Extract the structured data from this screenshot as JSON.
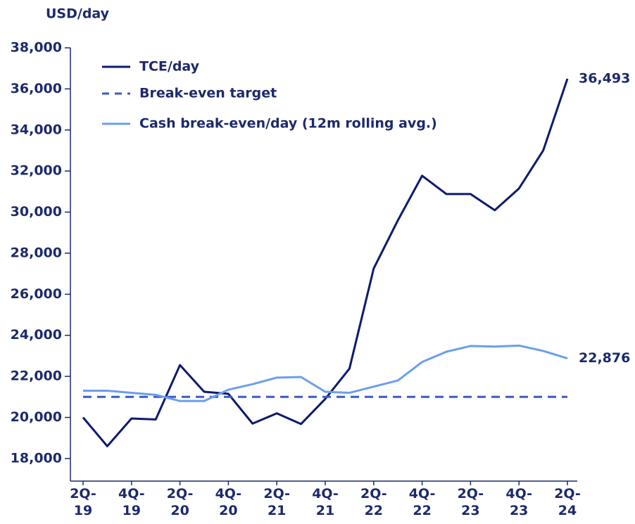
{
  "chart_data": {
    "type": "line",
    "y_label": "USD/day",
    "categories": [
      "2Q-19",
      null,
      "4Q-19",
      null,
      "2Q-20",
      null,
      "4Q-20",
      null,
      "2Q-21",
      null,
      "4Q-21",
      null,
      "2Q-22",
      null,
      "4Q-22",
      null,
      "2Q-23",
      null,
      "4Q-23",
      null,
      "2Q-24"
    ],
    "ylim": [
      16900,
      38000
    ],
    "yticks": [
      {
        "value": 18000,
        "label": "18,000"
      },
      {
        "value": 20000,
        "label": "20,000"
      },
      {
        "value": 22000,
        "label": "22,000"
      },
      {
        "value": 24000,
        "label": "24,000"
      },
      {
        "value": 26000,
        "label": "26,000"
      },
      {
        "value": 28000,
        "label": "28,000"
      },
      {
        "value": 30000,
        "label": "30,000"
      },
      {
        "value": 32000,
        "label": "32,000"
      },
      {
        "value": 34000,
        "label": "34,000"
      },
      {
        "value": 36000,
        "label": "36,000"
      },
      {
        "value": 38000,
        "label": "38,000"
      }
    ],
    "grid": false,
    "legend": "top-left",
    "series": [
      {
        "name": "TCE/day",
        "color": "#0e1a6e",
        "dashed": false,
        "values": [
          20000,
          18600,
          19950,
          19900,
          22550,
          21250,
          21150,
          19700,
          20200,
          19680,
          20900,
          22380,
          27250,
          29600,
          31770,
          30880,
          30880,
          30090,
          31150,
          33000,
          36493
        ],
        "value_labels": [
          null,
          null,
          null,
          null,
          null,
          null,
          null,
          null,
          null,
          null,
          null,
          null,
          null,
          null,
          null,
          null,
          null,
          null,
          null,
          null,
          "36,493"
        ]
      },
      {
        "name": "Break-even target",
        "color": "#3a5bc7",
        "dashed": true,
        "values": [
          21000,
          21000,
          21000,
          21000,
          21000,
          21000,
          21000,
          21000,
          21000,
          21000,
          21000,
          21000,
          21000,
          21000,
          21000,
          21000,
          21000,
          21000,
          21000,
          21000,
          21000
        ]
      },
      {
        "name": "Cash break-even/day (12m rolling avg.)",
        "color": "#6a9ef0",
        "dashed": false,
        "values": [
          21300,
          21300,
          21200,
          21100,
          20800,
          20800,
          21350,
          21620,
          21940,
          21970,
          21250,
          21200,
          21500,
          21800,
          22700,
          23200,
          23480,
          23450,
          23500,
          23240,
          22876
        ],
        "value_labels": [
          null,
          null,
          null,
          null,
          null,
          null,
          null,
          null,
          null,
          null,
          null,
          null,
          null,
          null,
          null,
          null,
          null,
          null,
          null,
          null,
          "22,876"
        ]
      }
    ]
  }
}
